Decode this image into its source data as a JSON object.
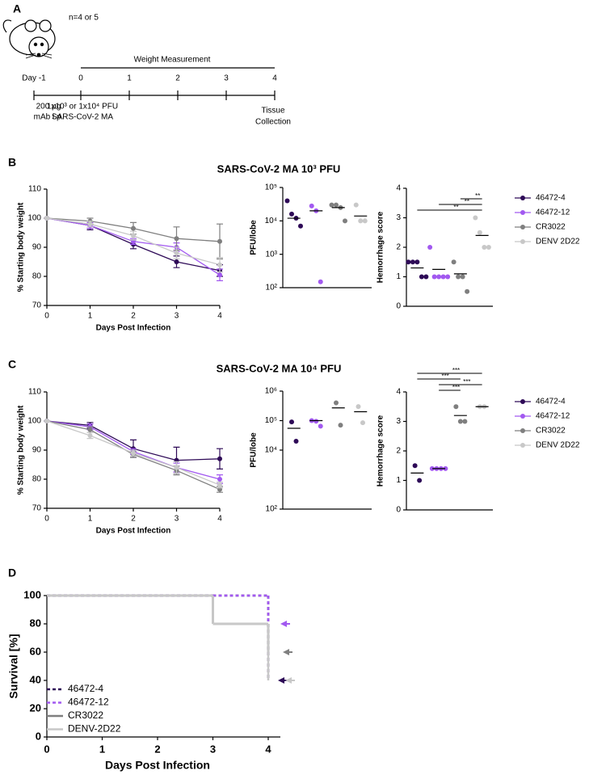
{
  "figure": {
    "panels": [
      {
        "label": "A"
      },
      {
        "label": "B",
        "title": "SARS-CoV-2 MA 10³ PFU"
      },
      {
        "label": "C",
        "title": "SARS-CoV-2 MA 10⁴ PFU"
      },
      {
        "label": "D"
      }
    ]
  },
  "diagram": {
    "group_size": "n=4 or 5",
    "bracket_label": "Weight Measurement",
    "timeline": [
      "Day -1",
      "0",
      "1",
      "2",
      "3",
      "4"
    ],
    "steps": [
      {
        "lines": [
          "200 µg",
          "mAb i.p."
        ]
      },
      {
        "lines": [
          "1x10³ or 1x10⁴ PFU",
          "SARS-CoV-2 MA"
        ]
      },
      {
        "lines": [
          "Tissue",
          "Collection"
        ]
      }
    ]
  },
  "chart_data": [
    {
      "type": "line",
      "xlabel": "Days Post Infection",
      "ylabel": "% Starting body weight",
      "x": [
        0,
        1,
        2,
        3,
        4
      ],
      "xlim": [
        0,
        4
      ],
      "xticks": [
        0,
        1,
        2,
        3,
        4
      ],
      "ylim": [
        70,
        110
      ],
      "yticks": [
        70,
        80,
        90,
        100,
        110
      ],
      "series": [
        {
          "color": "#2e0a57",
          "values": [
            100,
            97.5,
            91,
            85,
            82
          ],
          "errors": [
            0,
            1.5,
            1.5,
            2,
            2
          ]
        },
        {
          "color": "#a259f0",
          "values": [
            100,
            97.5,
            92,
            90,
            80.5
          ],
          "errors": [
            0,
            1,
            1,
            1.5,
            2
          ]
        },
        {
          "color": "#7f7f7f",
          "values": [
            100,
            99,
            96.5,
            93,
            92
          ],
          "errors": [
            0,
            1,
            2,
            4,
            6
          ]
        },
        {
          "color": "#c8c8c8",
          "values": [
            100,
            98,
            94,
            88,
            84
          ],
          "errors": [
            0,
            1,
            1.5,
            2,
            2.5
          ]
        }
      ]
    },
    {
      "type": "strip",
      "ylabel": "PFU/lobe",
      "log_scale": true,
      "ylim": [
        100,
        100000
      ],
      "yticks": [
        {
          "value": 100,
          "label": "10²"
        },
        {
          "value": 1000,
          "label": "10³"
        },
        {
          "value": 10000,
          "label": "10⁴"
        },
        {
          "value": 100000,
          "label": "10⁵"
        }
      ],
      "series": [
        {
          "color": "#2e0a57",
          "values": [
            40000,
            16000,
            12000,
            7000
          ],
          "mean": 12000
        },
        {
          "color": "#a259f0",
          "values": [
            28000,
            20000,
            150
          ],
          "mean": 20000
        },
        {
          "color": "#7f7f7f",
          "values": [
            30000,
            30000,
            25000,
            10000
          ],
          "mean": 25000
        },
        {
          "color": "#c8c8c8",
          "values": [
            30000,
            10000,
            10000
          ],
          "mean": 14000
        }
      ]
    },
    {
      "type": "strip",
      "ylabel": "Hemorrhage score",
      "ylim": [
        0,
        4
      ],
      "yticks": [
        0,
        1,
        2,
        3,
        4
      ],
      "legend": "right",
      "series": [
        {
          "name": "46472-4",
          "color": "#2e0a57",
          "values": [
            1.5,
            1.5,
            1.5,
            1,
            1
          ],
          "mean": 1.3
        },
        {
          "name": "46472-12",
          "color": "#a259f0",
          "values": [
            2,
            1,
            1,
            1,
            1
          ],
          "mean": 1.25
        },
        {
          "name": "CR3022",
          "color": "#7f7f7f",
          "values": [
            1.5,
            1,
            1,
            0.5
          ],
          "mean": 1.1
        },
        {
          "name": "DENV 2D22",
          "color": "#c8c8c8",
          "values": [
            3,
            2.5,
            2,
            2
          ],
          "mean": 2.4
        }
      ],
      "comparisons": [
        {
          "label": "**",
          "groups": [
            2,
            3
          ]
        },
        {
          "label": "**",
          "groups": [
            1,
            3
          ]
        },
        {
          "label": "**",
          "groups": [
            0,
            3
          ]
        }
      ]
    },
    {
      "type": "line",
      "xlabel": "Days Post Infection",
      "ylabel": "% Starting body weight",
      "x": [
        0,
        1,
        2,
        3,
        4
      ],
      "xlim": [
        0,
        4
      ],
      "xticks": [
        0,
        1,
        2,
        3,
        4
      ],
      "ylim": [
        70,
        110
      ],
      "yticks": [
        70,
        80,
        90,
        100,
        110
      ],
      "series": [
        {
          "color": "#2e0a57",
          "values": [
            100,
            98.5,
            90.5,
            86.5,
            87
          ],
          "errors": [
            0,
            1,
            3,
            4.5,
            3.5
          ]
        },
        {
          "color": "#a259f0",
          "values": [
            100,
            98,
            89.5,
            84,
            80
          ],
          "errors": [
            0,
            1,
            1,
            1.5,
            1.5
          ]
        },
        {
          "color": "#7f7f7f",
          "values": [
            100,
            97,
            88.5,
            83,
            76.5
          ],
          "errors": [
            0,
            1,
            1,
            1.5,
            1
          ]
        },
        {
          "color": "#c8c8c8",
          "values": [
            100,
            95,
            89,
            84,
            78
          ],
          "errors": [
            0,
            1,
            1,
            2,
            1
          ]
        }
      ]
    },
    {
      "type": "strip",
      "ylabel": "PFU/lobe",
      "log_scale": true,
      "ylim": [
        100,
        1000000
      ],
      "yticks": [
        {
          "value": 100,
          "label": "10²"
        },
        {
          "value": 10000,
          "label": "10⁴"
        },
        {
          "value": 100000,
          "label": "10⁵"
        },
        {
          "value": 1000000,
          "label": "10⁶"
        }
      ],
      "series": [
        {
          "color": "#2e0a57",
          "values": [
            90000,
            20000
          ],
          "mean": 55000
        },
        {
          "color": "#a259f0",
          "values": [
            100000,
            95000,
            65000
          ],
          "mean": 100000
        },
        {
          "color": "#7f7f7f",
          "values": [
            400000,
            70000
          ],
          "mean": 270000
        },
        {
          "color": "#c8c8c8",
          "values": [
            300000,
            85000
          ],
          "mean": 200000
        }
      ]
    },
    {
      "type": "strip",
      "ylabel": "Hemorrhage score",
      "ylim": [
        0,
        4
      ],
      "yticks": [
        0,
        1,
        2,
        3,
        4
      ],
      "legend": "right",
      "series": [
        {
          "name": "46472-4",
          "color": "#2e0a57",
          "values": [
            1.5,
            1
          ],
          "mean": 1.25
        },
        {
          "name": "46472-12",
          "color": "#a259f0",
          "values": [
            1.4,
            1.4,
            1.4,
            1.4
          ],
          "mean": 1.4
        },
        {
          "name": "CR3022",
          "color": "#7f7f7f",
          "values": [
            3.5,
            3,
            3
          ],
          "mean": 3.2
        },
        {
          "name": "DENV 2D22",
          "color": "#c8c8c8",
          "values": [
            3.5,
            3.5
          ],
          "mean": 3.5
        }
      ],
      "comparisons": [
        {
          "label": "***",
          "groups": [
            0,
            3
          ]
        },
        {
          "label": "***",
          "groups": [
            0,
            2
          ]
        },
        {
          "label": "***",
          "groups": [
            1,
            3
          ]
        },
        {
          "label": "***",
          "groups": [
            1,
            2
          ]
        }
      ]
    },
    {
      "type": "step",
      "xlabel": "Days Post Infection",
      "ylabel": "Survival  [%]",
      "legend": "lower left",
      "x": [
        0,
        3,
        4
      ],
      "xlim": [
        0,
        4
      ],
      "xticks": [
        0,
        1,
        2,
        3,
        4
      ],
      "ylim": [
        0,
        100
      ],
      "yticks": [
        0,
        20,
        40,
        60,
        80,
        100
      ],
      "series": [
        {
          "name": "46472-4",
          "color": "#2e0a57",
          "linestyle": "dashed",
          "values": [
            100,
            100,
            40
          ]
        },
        {
          "name": "46472-12",
          "color": "#a259f0",
          "linestyle": "dashed",
          "values": [
            100,
            100,
            80
          ]
        },
        {
          "name": "CR3022",
          "color": "#7f7f7f",
          "linestyle": "solid",
          "values": [
            100,
            80,
            60
          ]
        },
        {
          "name": "DENV-2D22",
          "color": "#c8c8c8",
          "linestyle": "solid",
          "values": [
            100,
            80,
            40
          ]
        }
      ]
    }
  ]
}
